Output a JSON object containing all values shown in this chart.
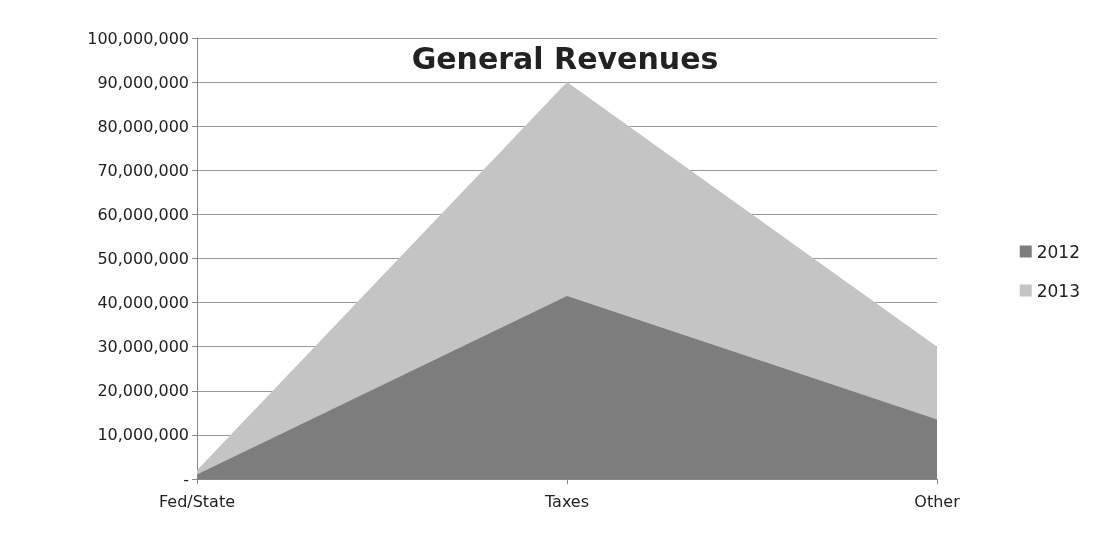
{
  "chart_data": {
    "type": "area",
    "title": "General Revenues",
    "categories": [
      "Fed/State",
      "Taxes",
      "Other"
    ],
    "series": [
      {
        "name": "2013",
        "color": "#c4c4c4",
        "values": [
          2000000,
          90000000,
          30000000
        ]
      },
      {
        "name": "2012",
        "color": "#7d7d7d",
        "values": [
          1000000,
          41500000,
          13500000
        ]
      }
    ],
    "ylim": [
      0,
      100000000
    ],
    "yticks": [
      {
        "value": 0,
        "label": "-"
      },
      {
        "value": 10000000,
        "label": "10,000,000"
      },
      {
        "value": 20000000,
        "label": "20,000,000"
      },
      {
        "value": 30000000,
        "label": "30,000,000"
      },
      {
        "value": 40000000,
        "label": "40,000,000"
      },
      {
        "value": 50000000,
        "label": "50,000,000"
      },
      {
        "value": 60000000,
        "label": "60,000,000"
      },
      {
        "value": 70000000,
        "label": "70,000,000"
      },
      {
        "value": 80000000,
        "label": "80,000,000"
      },
      {
        "value": 90000000,
        "label": "90,000,000"
      },
      {
        "value": 100000000,
        "label": "100,000,000"
      }
    ],
    "grid": "y",
    "legend": "right"
  }
}
